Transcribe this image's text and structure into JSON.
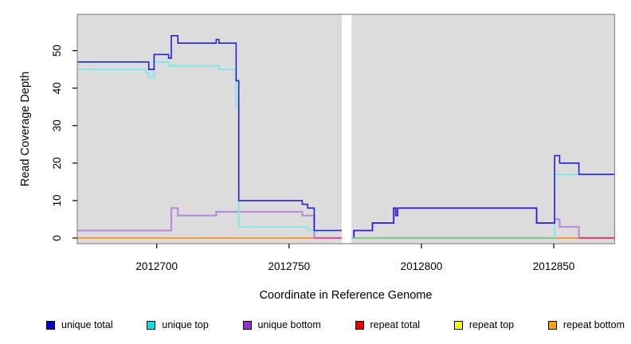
{
  "figure": {
    "background": "#FFFFFF",
    "panel_fill": "#DCDCDC",
    "panel_border": "#8C8C8C",
    "tick_color": "#000000",
    "text_color": "#000000"
  },
  "chart_data": {
    "type": "line",
    "step": "after",
    "title": "",
    "xlabel": "Coordinate in Reference Genome",
    "ylabel": "Read Coverage Depth",
    "xlim": [
      2012670,
      2012873
    ],
    "ylim": [
      -1.5,
      59.7
    ],
    "xticks": [
      2012700,
      2012750,
      2012800,
      2012850
    ],
    "yticks": [
      0,
      10,
      20,
      30,
      40,
      50
    ],
    "grid": false,
    "legend_position": "bottom",
    "gap_band": {
      "from": 2012769.9,
      "to": 2012773.6,
      "color": "#FFFFFF"
    },
    "series": [
      {
        "name": "unique total",
        "color": "#2222CF",
        "segments": [
          [
            [
              2012670,
              47
            ],
            [
              2012697,
              45
            ],
            [
              2012699,
              49
            ],
            [
              2012704.5,
              48
            ],
            [
              2012705.5,
              54
            ],
            [
              2012708,
              52
            ],
            [
              2012722.5,
              53
            ],
            [
              2012723.5,
              52
            ],
            [
              2012730,
              42
            ],
            [
              2012731,
              10
            ],
            [
              2012755,
              9
            ],
            [
              2012757,
              8
            ],
            [
              2012759.5,
              2
            ],
            [
              2012769.9,
              2
            ]
          ],
          [
            [
              2012773.6,
              0
            ],
            [
              2012774.5,
              2
            ],
            [
              2012781.5,
              4
            ],
            [
              2012789.5,
              8
            ],
            [
              2012790.3,
              6
            ],
            [
              2012791,
              8
            ],
            [
              2012843.5,
              4
            ],
            [
              2012850.3,
              22
            ],
            [
              2012852.2,
              20
            ],
            [
              2012859.5,
              17
            ],
            [
              2012873,
              17
            ]
          ]
        ]
      },
      {
        "name": "unique top",
        "color": "#7DE8F0",
        "segments": [
          [
            [
              2012670,
              45
            ],
            [
              2012696,
              44
            ],
            [
              2012697,
              43
            ],
            [
              2012699,
              47
            ],
            [
              2012704.5,
              46
            ],
            [
              2012723.5,
              45
            ],
            [
              2012730,
              35
            ],
            [
              2012731,
              3
            ],
            [
              2012757,
              2
            ],
            [
              2012769.9,
              2
            ]
          ],
          [
            [
              2012773.6,
              0
            ],
            [
              2012850.3,
              17
            ],
            [
              2012873,
              17
            ]
          ]
        ]
      },
      {
        "name": "unique bottom",
        "color": "#B78CDB",
        "segments": [
          [
            [
              2012670,
              2
            ],
            [
              2012705.5,
              8
            ],
            [
              2012708,
              6
            ],
            [
              2012722.5,
              7
            ],
            [
              2012755,
              6
            ],
            [
              2012759.5,
              0
            ],
            [
              2012769.9,
              0
            ]
          ],
          [
            [
              2012773.6,
              0
            ],
            [
              2012774.5,
              2
            ],
            [
              2012781.5,
              4
            ],
            [
              2012789.5,
              8
            ],
            [
              2012790.3,
              6
            ],
            [
              2012791,
              8
            ],
            [
              2012843.5,
              4
            ],
            [
              2012850.3,
              5
            ],
            [
              2012852.2,
              3
            ],
            [
              2012859.5,
              0
            ],
            [
              2012873,
              0
            ]
          ]
        ]
      },
      {
        "name": "repeat total",
        "color": "#E01030",
        "segments": [
          [
            [
              2012670,
              0
            ],
            [
              2012769.9,
              0
            ]
          ],
          [
            [
              2012773.6,
              0
            ],
            [
              2012873,
              0
            ]
          ]
        ]
      },
      {
        "name": "repeat top",
        "color": "#F0F000",
        "segments": [
          [
            [
              2012670,
              0
            ],
            [
              2012769.9,
              0
            ]
          ],
          [
            [
              2012773.6,
              0
            ],
            [
              2012873,
              0
            ]
          ]
        ]
      },
      {
        "name": "repeat bottom",
        "color": "#FFA020",
        "segments": [
          [
            [
              2012670,
              0
            ],
            [
              2012769.9,
              0
            ]
          ],
          [
            [
              2012773.6,
              0
            ],
            [
              2012873,
              0
            ]
          ]
        ]
      }
    ],
    "zero_line_overlaps": [
      {
        "from": 2012759.5,
        "to": 2012769.9,
        "color": "#DC55A0",
        "meaning": "unique bottom at zero over repeat lines"
      },
      {
        "from": 2012773.6,
        "to": 2012850.3,
        "color": "#83C88B",
        "meaning": "unique top at zero over repeat lines"
      },
      {
        "from": 2012859.5,
        "to": 2012873,
        "color": "#CE4E78",
        "meaning": "unique bottom at zero over repeat lines"
      }
    ],
    "legend": [
      {
        "label": "unique total",
        "swatch": "#0000CC"
      },
      {
        "label": "unique top",
        "swatch": "#00E5EE"
      },
      {
        "label": "unique bottom",
        "swatch": "#9133C9"
      },
      {
        "label": "repeat total",
        "swatch": "#EE0000"
      },
      {
        "label": "repeat top",
        "swatch": "#FFFF00"
      },
      {
        "label": "repeat bottom",
        "swatch": "#FFA500"
      }
    ]
  }
}
